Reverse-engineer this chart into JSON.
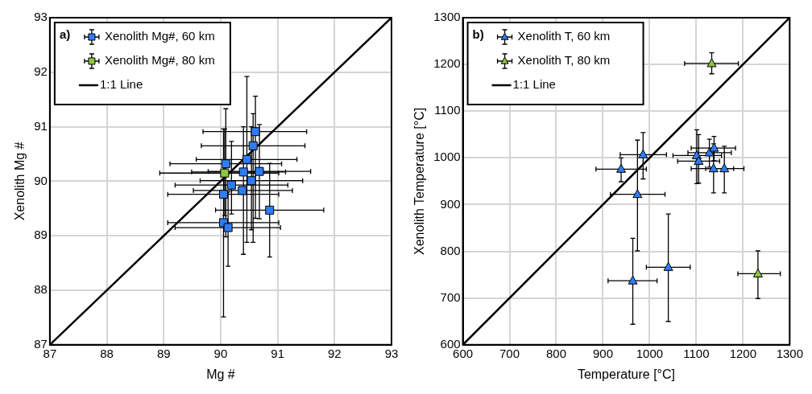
{
  "chart_data": [
    {
      "type": "scatter",
      "xlabel": "Mg #",
      "ylabel": "Xenolith Mg #",
      "xlim": [
        87,
        93
      ],
      "ylim": [
        87,
        93
      ],
      "xticks": [
        87,
        88,
        89,
        90,
        91,
        92,
        93
      ],
      "yticks": [
        87,
        88,
        89,
        90,
        91,
        92,
        93
      ],
      "grid": true,
      "legend": "top left",
      "legend_title": "a)",
      "marker": "square",
      "series": [
        {
          "name": "Xenolith Mg#, 60 km",
          "color": "#2f7df6",
          "x": [
            90.61,
            90.57,
            90.46,
            90.09,
            90.4,
            90.68,
            90.54,
            90.19,
            90.38,
            90.05,
            90.86,
            90.05,
            90.13
          ],
          "values": [
            90.91,
            90.65,
            90.4,
            90.32,
            90.17,
            90.18,
            90.01,
            89.93,
            89.83,
            89.76,
            89.47,
            89.24,
            89.15
          ],
          "errors": [
            [
              89.32,
              91.56
            ],
            [
              88.88,
              91.24
            ],
            [
              88.88,
              91.92
            ],
            [
              88.98,
              91.33
            ],
            [
              88.66,
              91.0
            ],
            [
              89.31,
              91.04
            ],
            [
              89.11,
              91.0
            ],
            [
              89.4,
              90.73
            ],
            null,
            null,
            [
              88.61,
              90.33
            ],
            [
              87.51,
              90.96
            ],
            [
              88.44,
              89.8
            ]
          ],
          "xerrors": [
            [
              89.69,
              91.51
            ],
            [
              89.66,
              91.48
            ],
            [
              89.57,
              91.34
            ],
            [
              89.11,
              91.07
            ],
            [
              89.49,
              91.14
            ],
            [
              89.78,
              91.58
            ],
            [
              89.64,
              91.44
            ],
            [
              89.2,
              91.18
            ],
            [
              89.52,
              91.26
            ],
            [
              89.07,
              91.02
            ],
            [
              89.91,
              91.81
            ],
            [
              89.07,
              91.02
            ],
            [
              89.2,
              91.05
            ]
          ]
        },
        {
          "name": "Xenolith Mg#, 80 km",
          "color": "#8dc63f",
          "x": [
            90.07
          ],
          "values": [
            90.15
          ],
          "errors": [
            [
              89.37,
              90.96
            ]
          ],
          "xerrors": [
            [
              88.93,
              91.02
            ]
          ]
        },
        {
          "name": "1:1 Line",
          "type": "line",
          "color": "#000000",
          "marker": "none",
          "x": [
            87,
            93
          ],
          "values": [
            87,
            93
          ]
        }
      ]
    },
    {
      "type": "scatter",
      "xlabel": "Temperature [°C]",
      "ylabel": "Xenolith Temperature [°C]",
      "xlim": [
        600,
        1300
      ],
      "ylim": [
        600,
        1300
      ],
      "xticks": [
        600,
        700,
        800,
        900,
        1000,
        1100,
        1200,
        1300
      ],
      "yticks": [
        600,
        700,
        800,
        900,
        1000,
        1100,
        1200,
        1300
      ],
      "grid": true,
      "legend": "top left",
      "legend_title": "b)",
      "marker": "triangle",
      "series": [
        {
          "name": "Xenolith T, 60 km",
          "color": "#2f7df6",
          "x": [
            986,
            939,
            974,
            964,
            1040,
            1101,
            1105,
            1128,
            1138,
            1137,
            1160
          ],
          "values": [
            1007,
            976,
            922,
            737,
            766,
            1005,
            993,
            1011,
            1021,
            977,
            977
          ],
          "errors": [
            [
              955,
              1054
            ],
            [
              949,
              1000
            ],
            [
              801,
              1038
            ],
            [
              644,
              828
            ],
            [
              650,
              880
            ],
            [
              945,
              1060
            ],
            [
              946,
              1050
            ],
            [
              980,
              1040
            ],
            [
              994,
              1046
            ],
            [
              925,
              1030
            ],
            [
              925,
              1025
            ]
          ],
          "xerrors": [
            [
              937,
              1036
            ],
            [
              885,
              993
            ],
            [
              916,
              1033
            ],
            [
              911,
              1016
            ],
            [
              993,
              1087
            ],
            [
              1050,
              1154
            ],
            [
              1060,
              1150
            ],
            [
              1082,
              1175
            ],
            [
              1089,
              1184
            ],
            [
              1089,
              1180
            ],
            [
              1120,
              1202
            ]
          ]
        },
        {
          "name": "Xenolith T, 80 km",
          "color": "#8dc63f",
          "x": [
            1133,
            1232
          ],
          "values": [
            1202,
            752
          ],
          "errors": [
            [
              1180,
              1225
            ],
            [
              699,
              801
            ]
          ],
          "xerrors": [
            [
              1075,
              1190
            ],
            [
              1189,
              1280
            ]
          ]
        },
        {
          "name": "1:1 Line",
          "type": "line",
          "color": "#000000",
          "marker": "none",
          "x": [
            600,
            1300
          ],
          "values": [
            600,
            1300
          ]
        }
      ]
    }
  ]
}
